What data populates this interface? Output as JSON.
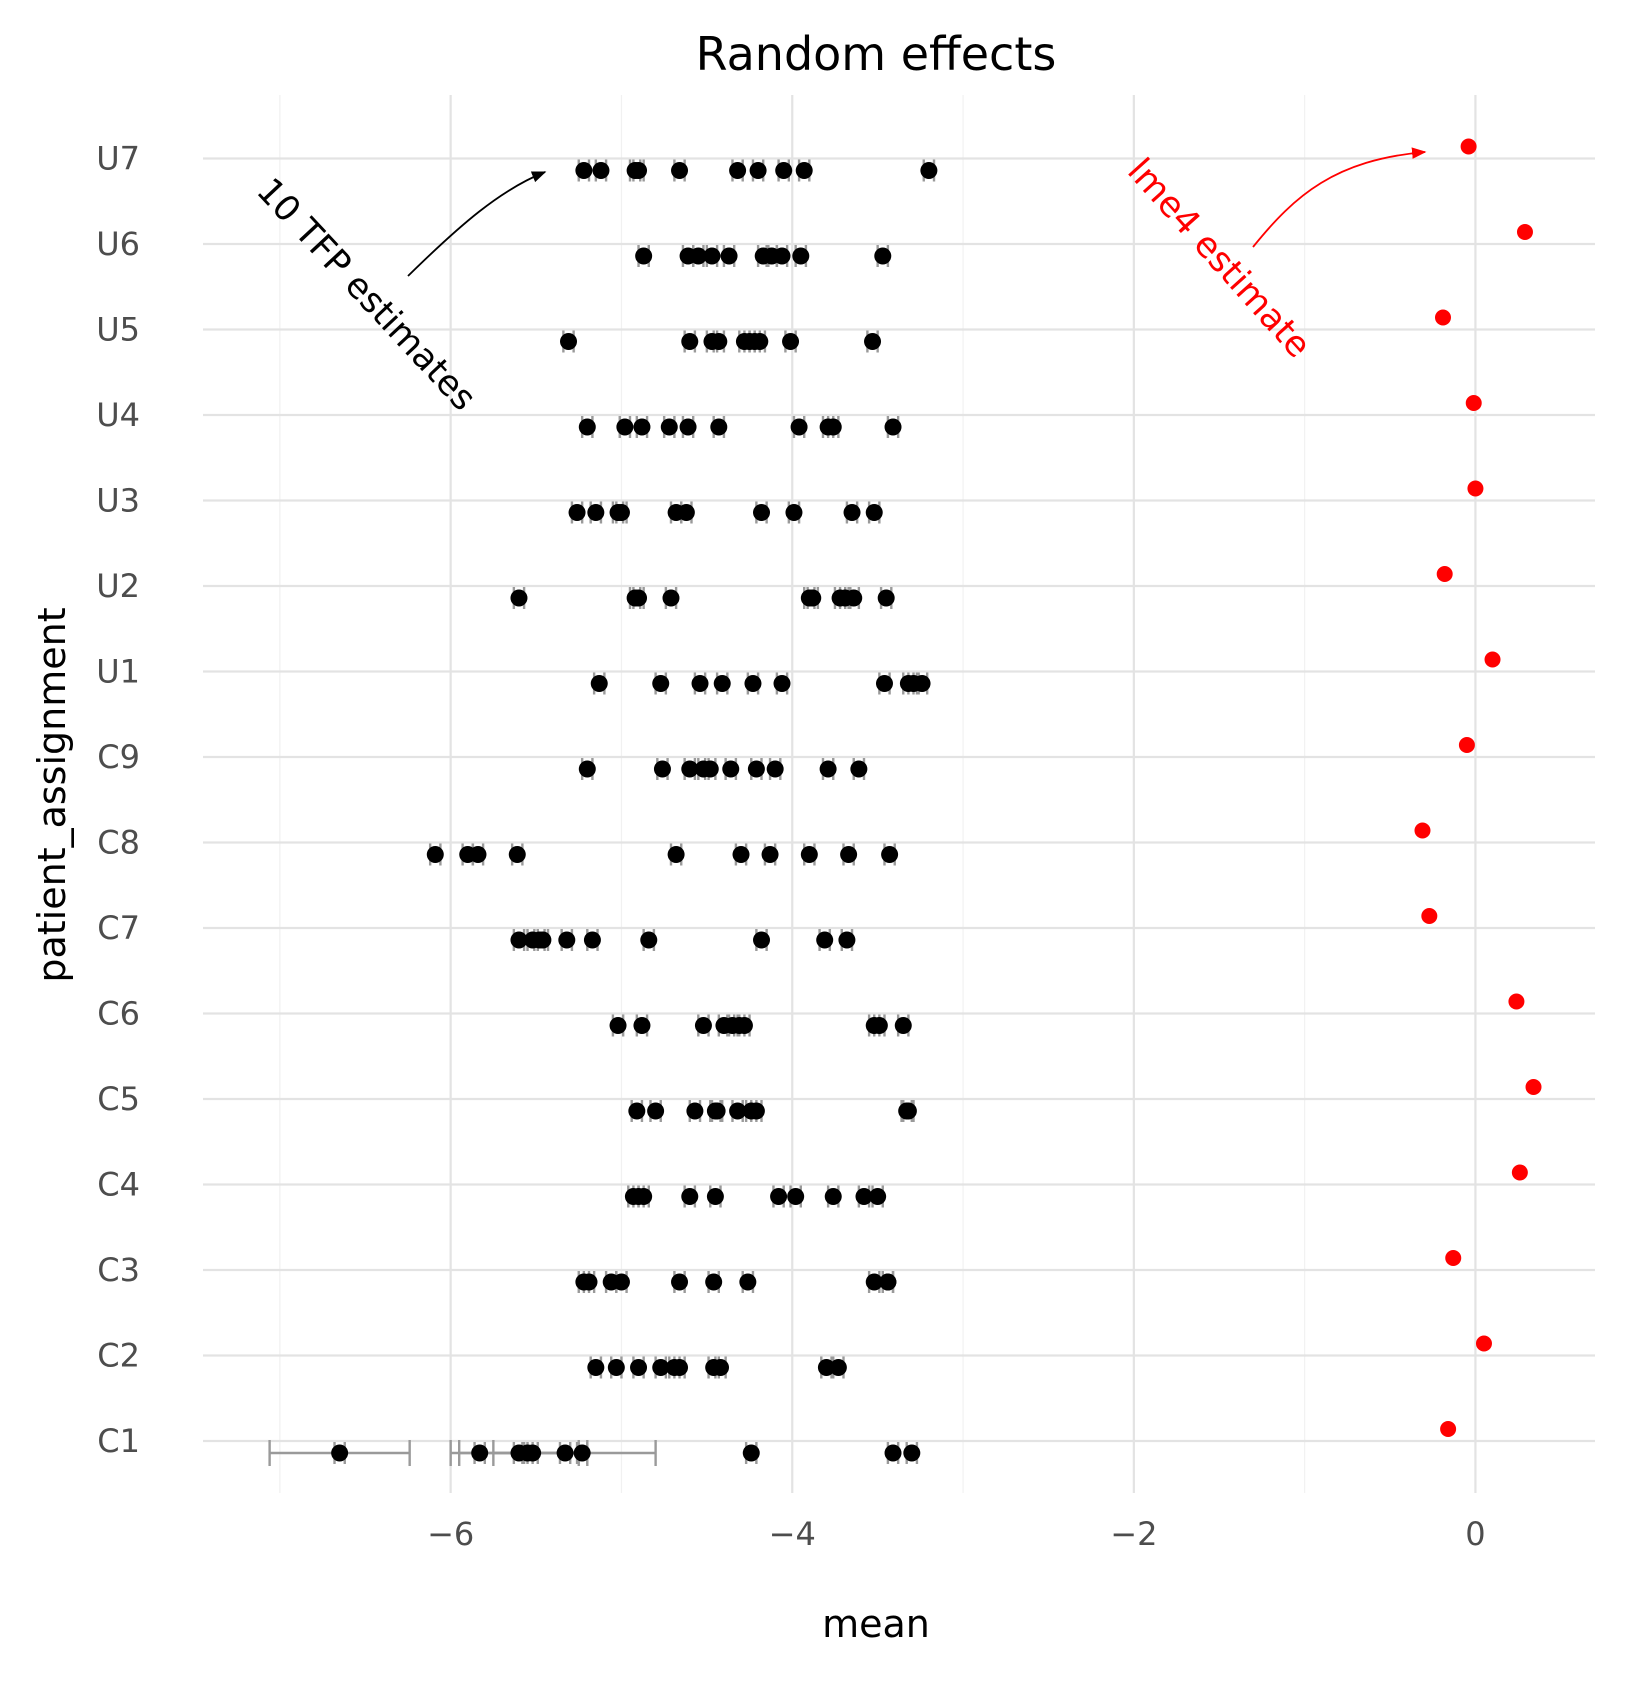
{
  "chart_data": {
    "type": "scatter",
    "title": "Random effects",
    "xlabel": "mean",
    "ylabel": "patient_assignment",
    "xlim": [
      -7.45,
      0.7
    ],
    "x_ticks": [
      -6,
      -4,
      -2,
      0
    ],
    "x_tick_labels": [
      "−6",
      "−4",
      "−2",
      "0"
    ],
    "x_minor_ticks": [
      -7,
      -5,
      -3,
      -1
    ],
    "categories": [
      "C1",
      "C2",
      "C3",
      "C4",
      "C5",
      "C6",
      "C7",
      "C8",
      "C9",
      "U1",
      "U2",
      "U3",
      "U4",
      "U5",
      "U6",
      "U7"
    ],
    "annotations": {
      "tfp_label": "10 TFP estimates",
      "lme4_label": "lme4 estimate"
    },
    "colors": {
      "tfp": "#000000",
      "lme4": "#ff0000",
      "errorbar": "#9a9a9a"
    },
    "series": [
      {
        "name": "10 TFP estimates",
        "err_halfwidth": 0.03,
        "points": {
          "C1": [
            -6.65,
            -5.83,
            -5.6,
            -5.55,
            -5.52,
            -5.33,
            -5.23,
            -4.24,
            -3.41,
            -3.3
          ],
          "C2": [
            -5.15,
            -5.03,
            -4.9,
            -4.77,
            -4.69,
            -4.66,
            -4.46,
            -4.42,
            -3.8,
            -3.73
          ],
          "C3": [
            -5.22,
            -5.19,
            -5.06,
            -5.0,
            -4.66,
            -4.46,
            -4.26,
            -3.52,
            -3.44,
            -3.44
          ],
          "C4": [
            -4.93,
            -4.9,
            -4.87,
            -4.6,
            -4.45,
            -4.08,
            -3.98,
            -3.76,
            -3.58,
            -3.5
          ],
          "C5": [
            -4.91,
            -4.8,
            -4.57,
            -4.45,
            -4.44,
            -4.32,
            -4.24,
            -4.21,
            -3.33,
            -3.32
          ],
          "C6": [
            -5.02,
            -4.88,
            -4.52,
            -4.4,
            -4.35,
            -4.31,
            -4.28,
            -3.52,
            -3.49,
            -3.35
          ],
          "C7": [
            -5.6,
            -5.52,
            -5.48,
            -5.46,
            -5.32,
            -5.17,
            -4.84,
            -4.18,
            -3.81,
            -3.68
          ],
          "C8": [
            -6.09,
            -5.9,
            -5.84,
            -5.61,
            -4.68,
            -4.3,
            -4.13,
            -3.9,
            -3.67,
            -3.43
          ],
          "C9": [
            -5.2,
            -4.76,
            -4.6,
            -4.52,
            -4.48,
            -4.36,
            -4.21,
            -4.1,
            -3.79,
            -3.61
          ],
          "U1": [
            -5.13,
            -4.77,
            -4.54,
            -4.41,
            -4.23,
            -4.06,
            -3.46,
            -3.32,
            -3.29,
            -3.24
          ],
          "U2": [
            -5.6,
            -4.92,
            -4.9,
            -4.71,
            -3.9,
            -3.88,
            -3.72,
            -3.69,
            -3.64,
            -3.45
          ],
          "U3": [
            -5.26,
            -5.15,
            -5.02,
            -5.0,
            -4.68,
            -4.62,
            -4.18,
            -3.99,
            -3.65,
            -3.52
          ],
          "U4": [
            -5.2,
            -4.98,
            -4.88,
            -4.72,
            -4.61,
            -4.43,
            -3.96,
            -3.79,
            -3.76,
            -3.41
          ],
          "U5": [
            -5.31,
            -4.6,
            -4.47,
            -4.43,
            -4.28,
            -4.25,
            -4.22,
            -4.19,
            -4.01,
            -3.53
          ],
          "U6": [
            -4.87,
            -4.61,
            -4.55,
            -4.47,
            -4.37,
            -4.17,
            -4.12,
            -4.06,
            -3.95,
            -3.47
          ],
          "U7": [
            -5.22,
            -5.12,
            -4.92,
            -4.9,
            -4.66,
            -4.32,
            -4.2,
            -4.05,
            -3.93,
            -3.2
          ]
        },
        "c1_errorbars": [
          {
            "low": -7.06,
            "high": -6.24
          },
          {
            "low": -6.0,
            "high": -4.8
          },
          {
            "low": -5.95,
            "high": -5.2
          },
          {
            "low": -5.75,
            "high": -5.25
          }
        ]
      },
      {
        "name": "lme4 estimate",
        "points": {
          "C1": -0.16,
          "C2": 0.05,
          "C3": -0.13,
          "C4": 0.26,
          "C5": 0.34,
          "C6": 0.24,
          "C7": -0.27,
          "C8": -0.31,
          "C9": -0.05,
          "U1": 0.1,
          "U2": -0.18,
          "U3": 0.0,
          "U4": -0.01,
          "U5": -0.19,
          "U6": 0.29,
          "U7": -0.04
        }
      }
    ]
  }
}
